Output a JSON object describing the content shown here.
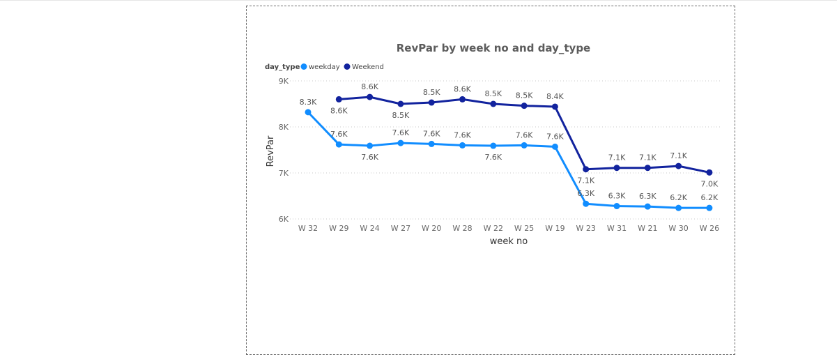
{
  "chart_data": {
    "type": "line",
    "title": "RevPar by week no and day_type",
    "xlabel": "week no",
    "ylabel": "RevPar",
    "legend_title": "day_type",
    "legend_position": "top-left",
    "categories": [
      "W 32",
      "W 29",
      "W 24",
      "W 27",
      "W 20",
      "W 28",
      "W 22",
      "W 25",
      "W 19",
      "W 23",
      "W 31",
      "W 21",
      "W 30",
      "W 26"
    ],
    "ylim": [
      6000,
      9000
    ],
    "yticks": [
      6000,
      7000,
      8000,
      9000
    ],
    "ytick_labels": [
      "6K",
      "7K",
      "8K",
      "9K"
    ],
    "grid": true,
    "series": [
      {
        "name": "weekday",
        "color": "#118dff",
        "values": [
          8320,
          7620,
          7590,
          7650,
          7630,
          7600,
          7590,
          7600,
          7570,
          6330,
          6280,
          6270,
          6240,
          6240
        ],
        "labels": [
          "8.3K",
          "7.6K",
          "7.6K",
          "7.6K",
          "7.6K",
          "7.6K",
          "7.6K",
          "7.6K",
          "7.6K",
          "6.3K",
          "6.3K",
          "6.3K",
          "6.2K",
          "6.2K"
        ],
        "label_pos": [
          "above",
          "above",
          "below",
          "above",
          "above",
          "above",
          "below",
          "above",
          "above",
          "above",
          "above",
          "above",
          "above",
          "above"
        ]
      },
      {
        "name": "Weekend",
        "color": "#12239e",
        "values": [
          null,
          8600,
          8650,
          8500,
          8530,
          8600,
          8500,
          8460,
          8440,
          7080,
          7110,
          7110,
          7150,
          7010
        ],
        "labels": [
          "",
          "8.6K",
          "8.6K",
          "8.5K",
          "8.5K",
          "8.6K",
          "8.5K",
          "8.5K",
          "8.4K",
          "7.1K",
          "7.1K",
          "7.1K",
          "7.1K",
          "7.0K"
        ],
        "label_pos": [
          "above",
          "below",
          "above",
          "below",
          "above",
          "above",
          "above",
          "above",
          "above",
          "below",
          "above",
          "above",
          "above",
          "below"
        ]
      }
    ]
  }
}
